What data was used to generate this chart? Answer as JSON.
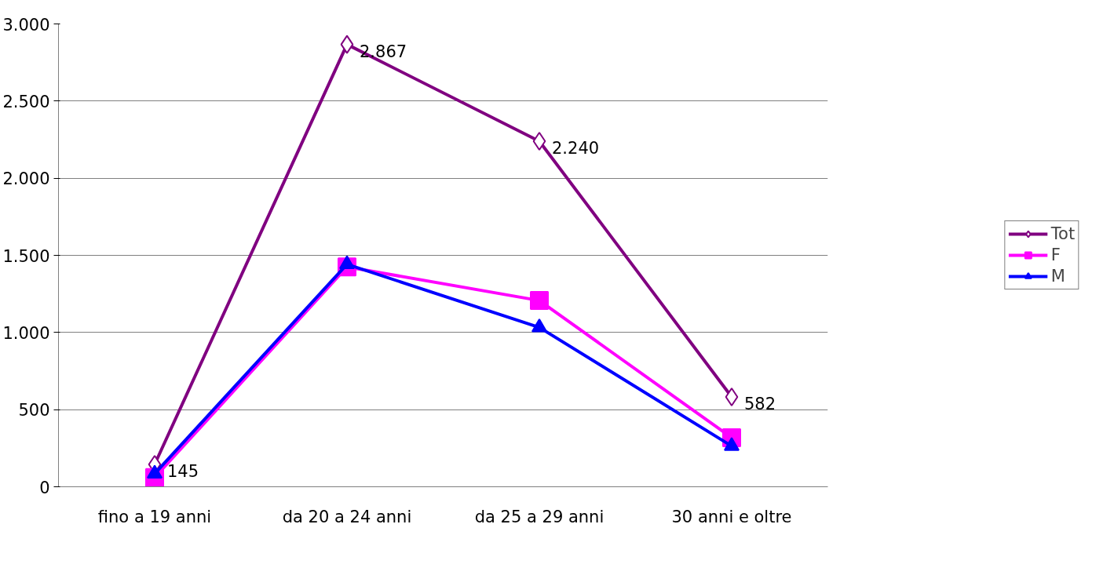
{
  "chart_data": {
    "type": "line",
    "categories": [
      "fino a 19 anni",
      "da 20 a 24 anni",
      "da 25 a 29 anni",
      "30 anni e oltre"
    ],
    "series": [
      {
        "name": "Tot",
        "color": "#800080",
        "marker": "diamond",
        "values": [
          145,
          2867,
          2240,
          582
        ],
        "value_labels": [
          "145",
          "2.867",
          "2.240",
          "582"
        ]
      },
      {
        "name": "F",
        "color": "#ff00ff",
        "marker": "square",
        "values": [
          60,
          1425,
          1207,
          318
        ]
      },
      {
        "name": "M",
        "color": "#0000ff",
        "marker": "triangle",
        "values": [
          85,
          1442,
          1033,
          264
        ]
      }
    ],
    "ylim": [
      0,
      3000
    ],
    "yticks": [
      {
        "value": 0,
        "label": "0"
      },
      {
        "value": 500,
        "label": "500"
      },
      {
        "value": 1000,
        "label": "1.000"
      },
      {
        "value": 1500,
        "label": "1.500"
      },
      {
        "value": 2000,
        "label": "2.000"
      },
      {
        "value": 2500,
        "label": "2.500"
      },
      {
        "value": 3000,
        "label": "3.000"
      }
    ],
    "grid": "y",
    "legend": "right",
    "line_style": "solid"
  }
}
